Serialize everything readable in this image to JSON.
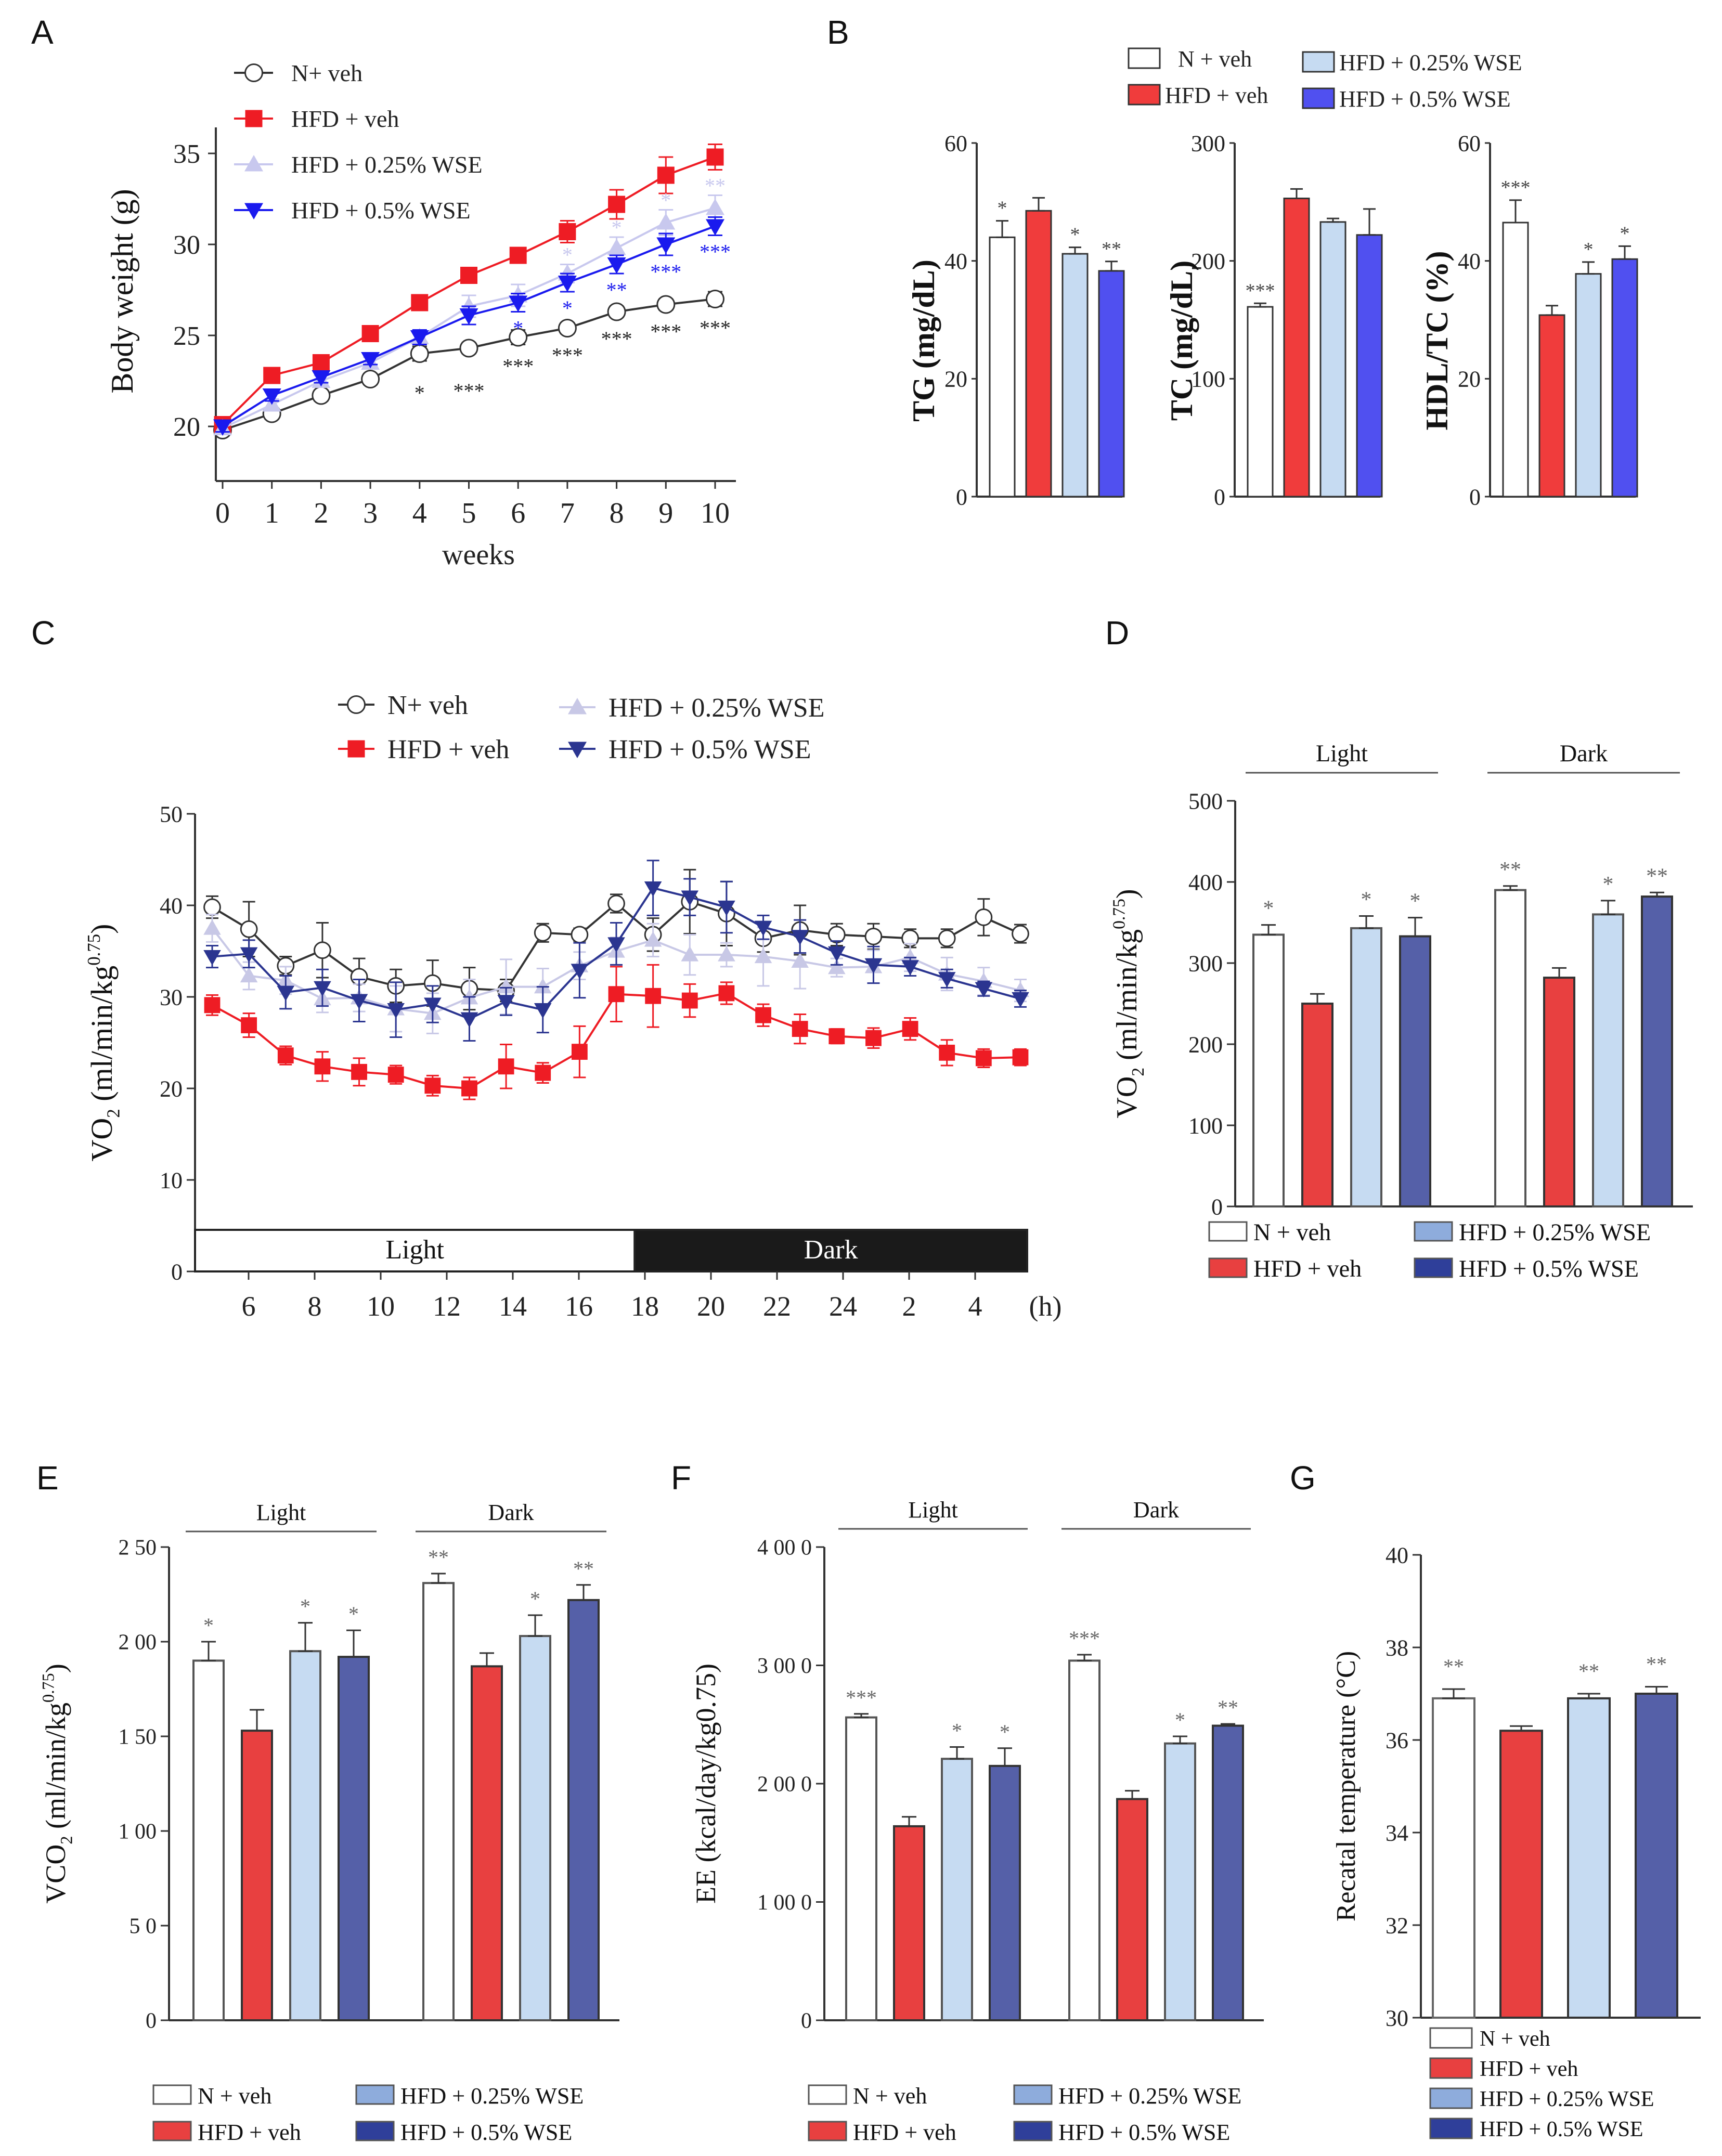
{
  "figure": {
    "panel_letters": [
      "A",
      "B",
      "C",
      "D",
      "E",
      "F",
      "G"
    ]
  },
  "groups": [
    {
      "name": "N + veh",
      "color": "#ffffff",
      "stroke": "#555555"
    },
    {
      "name": "HFD + veh",
      "color": "#e84040",
      "stroke": "#555555"
    },
    {
      "name": "HFD + 0.25% WSE",
      "color": "#c6dbf2",
      "stroke": "#555555"
    },
    {
      "name": "HFD + 0.5% WSE",
      "color": "#5560a8",
      "stroke": "#333333"
    }
  ],
  "chart_data": [
    {
      "panel": "A",
      "type": "line",
      "title": "",
      "xlabel": "weeks",
      "ylabel": "Body weight (g)",
      "x": [
        0,
        1,
        2,
        3,
        4,
        5,
        6,
        7,
        8,
        9,
        10
      ],
      "xticks": [
        "0",
        "1",
        "2",
        "3",
        "4",
        "5",
        "6",
        "7",
        "8",
        "9",
        "10"
      ],
      "yticks": [
        "20",
        "25",
        "30",
        "35"
      ],
      "ylim": [
        17.5,
        35.5
      ],
      "legend": {
        "position": "top-left",
        "entries": [
          "N+ veh",
          "HFD + veh",
          "HFD + 0.25% WSE",
          "HFD + 0.5% WSE"
        ]
      },
      "series": [
        {
          "name": "N+ veh",
          "color": "#333333",
          "marker": "open-circle",
          "values": [
            19.8,
            20.7,
            21.7,
            22.6,
            24.0,
            24.3,
            24.9,
            25.4,
            26.3,
            26.7,
            27.0
          ],
          "errors": [
            0.3,
            0.3,
            0.3,
            0.3,
            0.4,
            0.3,
            0.4,
            0.3,
            0.3,
            0.3,
            0.4
          ],
          "annotations": [
            "",
            "",
            "",
            "",
            "*",
            "***",
            "***",
            "***",
            "***",
            "***",
            "***"
          ]
        },
        {
          "name": "HFD + veh",
          "color": "#ee1c24",
          "marker": "square",
          "values": [
            20.1,
            22.8,
            23.5,
            25.1,
            26.8,
            28.3,
            29.4,
            30.7,
            32.2,
            33.8,
            34.8
          ],
          "errors": [
            0.3,
            0.2,
            0.4,
            0.4,
            0.4,
            0.4,
            0.4,
            0.6,
            0.8,
            1.0,
            0.7
          ],
          "annotations": [
            "",
            "",
            "",
            "",
            "",
            "",
            "",
            "",
            "",
            "",
            ""
          ]
        },
        {
          "name": "HFD + 0.25% WSE",
          "color": "#c8c8ee",
          "marker": "triangle-up",
          "values": [
            19.9,
            21.2,
            22.5,
            23.5,
            24.9,
            26.6,
            27.2,
            28.4,
            29.8,
            31.2,
            32.0
          ],
          "errors": [
            0.3,
            0.3,
            0.3,
            0.3,
            0.4,
            0.6,
            0.6,
            0.5,
            0.6,
            0.7,
            0.7
          ],
          "annotations": [
            "",
            "",
            "",
            "",
            "",
            "",
            "",
            "*",
            "*",
            "*",
            "**"
          ]
        },
        {
          "name": "HFD + 0.5% WSE",
          "color": "#1a1aee",
          "marker": "triangle-down",
          "values": [
            20.0,
            21.7,
            22.7,
            23.7,
            24.9,
            26.1,
            26.8,
            27.9,
            28.9,
            30.0,
            31.0
          ],
          "errors": [
            0.3,
            0.3,
            0.3,
            0.3,
            0.4,
            0.5,
            0.5,
            0.5,
            0.5,
            0.6,
            0.5
          ],
          "annotations": [
            "",
            "",
            "",
            "",
            "",
            "",
            "*",
            "*",
            "**",
            "***",
            "***"
          ]
        }
      ]
    },
    {
      "panel": "B",
      "type": "bar",
      "legend": {
        "position": "top",
        "entries": [
          "N + veh",
          "HFD + veh",
          "HFD + 0.25% WSE",
          "HFD + 0.5% WSE"
        ]
      },
      "subplots": [
        {
          "ylabel": "TG (mg/dL)",
          "ylim": [
            0,
            60
          ],
          "yticks": [
            "0",
            "20",
            "40",
            "60"
          ],
          "values": [
            44.0,
            48.5,
            41.2,
            38.3
          ],
          "errors": [
            2.8,
            2.2,
            1.1,
            1.6
          ],
          "annotations": [
            "*",
            "",
            "*",
            "**"
          ]
        },
        {
          "ylabel": "TC (mg/dL)",
          "ylim": [
            0,
            300
          ],
          "yticks": [
            "0",
            "100",
            "200",
            "300"
          ],
          "values": [
            161,
            253,
            233,
            222
          ],
          "errors": [
            3,
            8,
            3,
            22
          ],
          "annotations": [
            "***",
            "",
            "",
            ""
          ]
        },
        {
          "ylabel": "HDL/TC (%)",
          "ylim": [
            0,
            60
          ],
          "yticks": [
            "0",
            "20",
            "40",
            "60"
          ],
          "values": [
            46.5,
            30.8,
            37.8,
            40.3
          ],
          "errors": [
            3.8,
            1.6,
            2.0,
            2.2
          ],
          "annotations": [
            "***",
            "",
            "*",
            "*"
          ]
        }
      ],
      "colors": [
        "#ffffff",
        "#f03c3c",
        "#c6dbf2",
        "#5050f0"
      ]
    },
    {
      "panel": "C",
      "type": "line",
      "xlabel": "(h)",
      "ylabel": "VO2 (ml/min/kg0.75)",
      "ylim": [
        0,
        50
      ],
      "yticks": [
        "0",
        "10",
        "20",
        "30",
        "40",
        "50"
      ],
      "xticks": [
        "6",
        "8",
        "10",
        "12",
        "14",
        "16",
        "18",
        "20",
        "22",
        "24",
        "2",
        "4"
      ],
      "xunit": "(h)",
      "phase_bar": {
        "light_label": "Light",
        "dark_label": "Dark",
        "light_points": 12
      },
      "legend": {
        "position": "top",
        "entries": [
          "N+ veh",
          "HFD + veh",
          "HFD + 0.25% WSE",
          "HFD + 0.5% WSE"
        ]
      },
      "series": [
        {
          "name": "N+ veh",
          "color": "#333333",
          "marker": "open-circle",
          "values": [
            39.8,
            37.4,
            33.4,
            35.1,
            32.2,
            31.2,
            31.5,
            30.9,
            30.7,
            37.0,
            36.8,
            40.2,
            36.8,
            40.4,
            39.1,
            36.4,
            37.3,
            36.8,
            36.6,
            36.4,
            36.4,
            38.7,
            36.9
          ],
          "errors": [
            1.2,
            3.0,
            1.0,
            3.0,
            2.0,
            1.8,
            2.5,
            2.3,
            1.2,
            1.0,
            0.7,
            1.0,
            1.8,
            3.5,
            3.5,
            1.5,
            2.7,
            1.2,
            1.4,
            1.0,
            1.0,
            2.0,
            1.0
          ]
        },
        {
          "name": "HFD + veh",
          "color": "#ee1c24",
          "marker": "square",
          "values": [
            29.1,
            26.9,
            23.6,
            22.4,
            21.8,
            21.5,
            20.3,
            20.0,
            22.4,
            21.7,
            24.0,
            30.3,
            30.1,
            29.6,
            30.4,
            28.0,
            26.5,
            25.7,
            25.5,
            26.5,
            23.9,
            23.3,
            23.4
          ],
          "errors": [
            1.1,
            1.3,
            1.0,
            1.6,
            1.5,
            1.0,
            1.1,
            1.2,
            2.4,
            1.1,
            2.8,
            3.0,
            3.4,
            1.8,
            1.2,
            1.2,
            1.6,
            0.8,
            1.1,
            1.2,
            1.4,
            1.0,
            0.9
          ]
        },
        {
          "name": "HFD + 0.25% WSE",
          "color": "#c8c8e6",
          "marker": "triangle-up",
          "values": [
            37.5,
            32.3,
            31.8,
            29.8,
            29.9,
            28.7,
            28.2,
            29.9,
            31.1,
            31.1,
            33.4,
            35.0,
            36.2,
            34.6,
            34.6,
            34.4,
            33.9,
            33.2,
            33.3,
            34.3,
            32.5,
            31.7,
            30.7
          ],
          "errors": [
            1.5,
            1.5,
            1.5,
            1.5,
            1.5,
            2.5,
            2.2,
            2.0,
            3.0,
            2.0,
            1.5,
            1.5,
            1.8,
            2.2,
            1.3,
            3.2,
            3.0,
            1.0,
            1.8,
            1.5,
            1.8,
            1.5,
            1.2
          ]
        },
        {
          "name": "HFD + 0.5% WSE",
          "color": "#2b3590",
          "marker": "triangle-down",
          "values": [
            34.4,
            34.7,
            30.5,
            31.0,
            29.6,
            28.6,
            29.2,
            27.6,
            29.5,
            28.6,
            32.9,
            35.8,
            41.9,
            40.9,
            39.8,
            37.6,
            36.6,
            34.8,
            33.5,
            33.3,
            32.0,
            30.9,
            29.8
          ],
          "errors": [
            1.2,
            1.5,
            1.8,
            2.0,
            2.3,
            3.0,
            2.0,
            2.4,
            1.5,
            2.5,
            3.0,
            2.3,
            3.0,
            2.0,
            2.8,
            1.3,
            1.8,
            1.3,
            2.0,
            1.0,
            1.0,
            0.8,
            0.9
          ]
        }
      ]
    },
    {
      "panel": "D",
      "type": "bar",
      "ylabel": "VO2 (ml/min/kg0.75)",
      "ylim": [
        0,
        500
      ],
      "yticks": [
        "0",
        "100",
        "200",
        "300",
        "400",
        "500"
      ],
      "categories": [
        "Light",
        "Dark"
      ],
      "legend": {
        "position": "bottom",
        "entries": [
          "N + veh",
          "HFD + veh",
          "HFD + 0.25% WSE",
          "HFD + 0.5% WSE"
        ]
      },
      "series": [
        {
          "name": "N + veh",
          "values": [
            335,
            390
          ],
          "errors": [
            12,
            5
          ],
          "annotations": [
            "*",
            "**"
          ]
        },
        {
          "name": "HFD + veh",
          "values": [
            250,
            282
          ],
          "errors": [
            12,
            12
          ],
          "annotations": [
            "",
            ""
          ]
        },
        {
          "name": "HFD + 0.25% WSE",
          "values": [
            343,
            360
          ],
          "errors": [
            15,
            17
          ],
          "annotations": [
            "*",
            "*"
          ]
        },
        {
          "name": "HFD + 0.5% WSE",
          "values": [
            333,
            382
          ],
          "errors": [
            23,
            5
          ],
          "annotations": [
            "*",
            "**"
          ]
        }
      ]
    },
    {
      "panel": "E",
      "type": "bar",
      "ylabel": "VCO2 (ml/min/kg0.75)",
      "ylim": [
        0,
        250
      ],
      "yticks": [
        "0",
        "5 0",
        "1 00",
        "1 50",
        "2 00",
        "2 50"
      ],
      "categories": [
        "Light",
        "Dark"
      ],
      "legend": {
        "position": "bottom",
        "entries": [
          "N + veh",
          "HFD + veh",
          "HFD + 0.25% WSE",
          "HFD + 0.5% WSE"
        ]
      },
      "series": [
        {
          "name": "N + veh",
          "values": [
            190,
            231
          ],
          "errors": [
            10,
            5
          ],
          "annotations": [
            "*",
            "**"
          ]
        },
        {
          "name": "HFD + veh",
          "values": [
            153,
            187
          ],
          "errors": [
            11,
            7
          ],
          "annotations": [
            "",
            ""
          ]
        },
        {
          "name": "HFD + 0.25% WSE",
          "values": [
            195,
            203
          ],
          "errors": [
            15,
            11
          ],
          "annotations": [
            "*",
            "*"
          ]
        },
        {
          "name": "HFD + 0.5% WSE",
          "values": [
            192,
            222
          ],
          "errors": [
            14,
            8
          ],
          "annotations": [
            "*",
            "**"
          ]
        }
      ]
    },
    {
      "panel": "F",
      "type": "bar",
      "ylabel": "EE (kcal/day/kg0.75)",
      "ylim": [
        0,
        4000
      ],
      "yticks": [
        "0",
        "1 00 0",
        "2 00 0",
        "3 00 0",
        "4 00 0"
      ],
      "categories": [
        "Light",
        "Dark"
      ],
      "legend": {
        "position": "bottom",
        "entries": [
          "N + veh",
          "HFD + veh",
          "HFD + 0.25% WSE",
          "HFD + 0.5% WSE"
        ]
      },
      "series": [
        {
          "name": "N + veh",
          "values": [
            2560,
            3040
          ],
          "errors": [
            30,
            50
          ],
          "annotations": [
            "***",
            "***"
          ]
        },
        {
          "name": "HFD + veh",
          "values": [
            1640,
            1870
          ],
          "errors": [
            80,
            70
          ],
          "annotations": [
            "",
            ""
          ]
        },
        {
          "name": "HFD + 0.25% WSE",
          "values": [
            2210,
            2340
          ],
          "errors": [
            100,
            60
          ],
          "annotations": [
            "*",
            "*"
          ]
        },
        {
          "name": "HFD + 0.5% WSE",
          "values": [
            2150,
            2490
          ],
          "errors": [
            150,
            15
          ],
          "annotations": [
            "*",
            "**"
          ]
        }
      ]
    },
    {
      "panel": "G",
      "type": "bar",
      "ylabel": "Recatal temperature (°C)",
      "ylim": [
        30,
        40
      ],
      "yticks": [
        "30",
        "32",
        "34",
        "36",
        "38",
        "40"
      ],
      "categories": [
        "N + veh",
        "HFD + veh",
        "HFD + 0.25% WSE",
        "HFD + 0.5% WSE"
      ],
      "legend": {
        "position": "bottom",
        "entries": [
          "N + veh",
          "HFD + veh",
          "HFD + 0.25% WSE",
          "HFD + 0.5% WSE"
        ]
      },
      "values": [
        36.9,
        36.2,
        36.9,
        37.0
      ],
      "errors": [
        0.2,
        0.1,
        0.1,
        0.15
      ],
      "annotations": [
        "**",
        "",
        "**",
        "**"
      ]
    }
  ]
}
